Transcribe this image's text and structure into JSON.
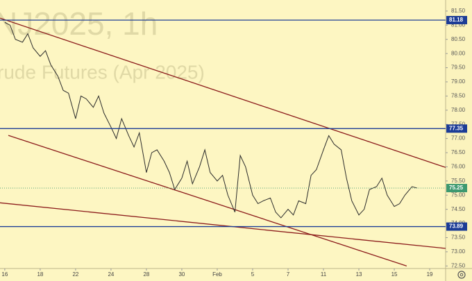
{
  "chart_data": {
    "type": "line",
    "watermark": [
      "NJ2025, 1h",
      "rude Futures (Apr 2025)"
    ],
    "x": [
      0,
      0.3,
      0.6,
      1,
      1.3,
      1.6,
      2,
      2.3,
      2.6,
      3,
      3.3,
      3.6,
      4,
      4.3,
      4.6,
      5,
      5.3,
      5.6,
      6,
      6.3,
      6.6,
      7,
      7.3,
      7.6,
      8,
      8.3,
      8.6,
      9,
      9.3,
      9.6,
      10,
      10.3,
      10.6,
      11,
      11.3,
      11.6,
      12,
      12.3,
      12.6,
      13,
      13.3,
      13.6,
      14,
      14.3,
      14.6,
      15,
      15.3,
      15.6,
      16,
      16.3,
      16.6,
      17,
      17.3,
      17.6,
      18,
      18.3,
      18.6,
      19,
      19.3,
      19.6,
      20,
      20.3,
      20.6,
      21,
      21.3,
      21.6,
      22,
      22.3,
      22.6,
      23,
      23.3
    ],
    "values": [
      81.1,
      81.0,
      80.5,
      80.4,
      80.7,
      80.2,
      79.9,
      80.1,
      79.6,
      79.2,
      78.7,
      78.6,
      77.7,
      78.5,
      78.4,
      78.1,
      78.5,
      77.9,
      77.4,
      77.0,
      77.7,
      77.1,
      76.7,
      77.2,
      75.8,
      76.5,
      76.6,
      76.2,
      75.8,
      75.2,
      75.6,
      76.2,
      75.4,
      76.0,
      76.6,
      75.8,
      75.5,
      75.7,
      75.0,
      74.4,
      76.4,
      76.0,
      75.0,
      74.7,
      74.8,
      74.9,
      74.4,
      74.2,
      74.5,
      74.3,
      74.8,
      74.7,
      75.7,
      75.9,
      76.6,
      77.1,
      76.8,
      76.6,
      75.6,
      74.8,
      74.3,
      74.5,
      75.2,
      75.3,
      75.6,
      75.0,
      74.6,
      74.7,
      75.0,
      75.3,
      75.25
    ],
    "color": "#2b2b2b",
    "xlim": [
      -0.27,
      24.9
    ],
    "ylim": [
      72.41,
      81.89
    ],
    "xticks": [
      {
        "value": 0,
        "label": "16"
      },
      {
        "value": 2,
        "label": "18"
      },
      {
        "value": 4,
        "label": "22"
      },
      {
        "value": 6,
        "label": "24"
      },
      {
        "value": 8,
        "label": "28"
      },
      {
        "value": 10,
        "label": "30"
      },
      {
        "value": 12,
        "label": "Feb"
      },
      {
        "value": 14,
        "label": "5"
      },
      {
        "value": 16,
        "label": "7"
      },
      {
        "value": 18,
        "label": "11"
      },
      {
        "value": 20,
        "label": "13"
      },
      {
        "value": 22,
        "label": "15"
      },
      {
        "value": 24,
        "label": "19"
      }
    ],
    "yticks": [
      {
        "value": 81.5,
        "label": "81.50"
      },
      {
        "value": 81,
        "label": "81.00"
      },
      {
        "value": 80.5,
        "label": "80.50"
      },
      {
        "value": 80,
        "label": "80.00"
      },
      {
        "value": 79.5,
        "label": "79.50"
      },
      {
        "value": 79,
        "label": "79.00"
      },
      {
        "value": 78.5,
        "label": "78.50"
      },
      {
        "value": 78,
        "label": "78.00"
      },
      {
        "value": 77.5,
        "label": "77.50"
      },
      {
        "value": 77,
        "label": "77.00"
      },
      {
        "value": 76.5,
        "label": "76.50"
      },
      {
        "value": 76,
        "label": "76.00"
      },
      {
        "value": 75.5,
        "label": "75.50"
      },
      {
        "value": 75,
        "label": "75.00"
      },
      {
        "value": 74.5,
        "label": "74.50"
      },
      {
        "value": 74,
        "label": "74.00"
      },
      {
        "value": 73.5,
        "label": "73.50"
      },
      {
        "value": 73,
        "label": "73.00"
      },
      {
        "value": 72.5,
        "label": "72.50"
      }
    ],
    "levels": [
      81.18,
      77.35,
      73.89
    ],
    "level_color": "#1c3c96",
    "last_price": 75.25,
    "last_price_color": "#3d9970",
    "trendlines": [
      {
        "x": [
          -0.27,
          24.9
        ],
        "y": [
          81.25,
          75.98
        ]
      },
      {
        "x": [
          0.2,
          22.7
        ],
        "y": [
          77.11,
          72.5
        ]
      },
      {
        "x": [
          -0.27,
          24.9
        ],
        "y": [
          74.73,
          73.12
        ]
      }
    ],
    "trendline_color": "#8b1a1a"
  }
}
